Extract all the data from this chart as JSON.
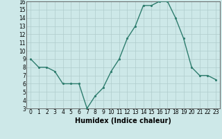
{
  "x": [
    0,
    1,
    2,
    3,
    4,
    5,
    6,
    7,
    8,
    9,
    10,
    11,
    12,
    13,
    14,
    15,
    16,
    17,
    18,
    19,
    20,
    21,
    22,
    23
  ],
  "y": [
    9,
    8,
    8,
    7.5,
    6,
    6,
    6,
    3,
    4.5,
    5.5,
    7.5,
    9,
    11.5,
    13,
    15.5,
    15.5,
    16,
    16,
    14,
    11.5,
    8,
    7,
    7,
    6.5
  ],
  "line_color": "#2e7d6e",
  "marker_color": "#2e7d6e",
  "bg_color": "#cde8e8",
  "grid_color": "#b0cccc",
  "xlabel": "Humidex (Indice chaleur)",
  "ylim": [
    3,
    16
  ],
  "xlim": [
    -0.5,
    23.5
  ],
  "yticks": [
    3,
    4,
    5,
    6,
    7,
    8,
    9,
    10,
    11,
    12,
    13,
    14,
    15,
    16
  ],
  "xticks": [
    0,
    1,
    2,
    3,
    4,
    5,
    6,
    7,
    8,
    9,
    10,
    11,
    12,
    13,
    14,
    15,
    16,
    17,
    18,
    19,
    20,
    21,
    22,
    23
  ],
  "tick_fontsize": 5.5,
  "xlabel_fontsize": 7,
  "xlabel_fontweight": "bold",
  "linewidth": 1.0,
  "markersize": 2.5
}
